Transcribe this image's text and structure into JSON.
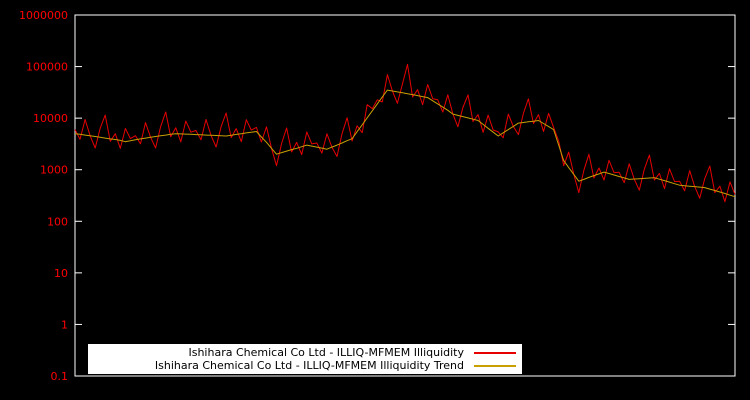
{
  "chart_data": {
    "type": "line",
    "title": "",
    "xlabel": "",
    "ylabel": "",
    "y_scale": "log",
    "ylim": [
      0.1,
      1000000
    ],
    "y_ticks": [
      "1000000",
      "100000",
      "10000",
      "1000",
      "100",
      "10",
      "1",
      "0.1"
    ],
    "x_tick_labels_visible": false,
    "grid": false,
    "background_color": "#000000",
    "axis_color": "#ffffff",
    "tick_label_color": "#ff0000",
    "legend": {
      "background": "#ffffff",
      "text_color": "#000000",
      "position": "bottom-center-inside"
    },
    "series": [
      {
        "name": "Ishihara Chemical Co Ltd - ILLIQ-MFMEM Illiquidity",
        "color": "#e60000",
        "values": [
          6000,
          3880,
          9400,
          4550,
          2640,
          6380,
          11480,
          3560,
          5000,
          2590,
          6300,
          4020,
          4560,
          3160,
          8200,
          4250,
          2640,
          6830,
          13160,
          4370,
          6500,
          3470,
          8820,
          5340,
          5760,
          3800,
          9400,
          4650,
          2760,
          6830,
          12600,
          4200,
          6280,
          3500,
          9310,
          5860,
          6600,
          3440,
          6800,
          2600,
          1200,
          3230,
          6440,
          2210,
          3380,
          1960,
          5400,
          3160,
          3300,
          2100,
          5000,
          2750,
          1800,
          4950,
          10220,
          3600,
          7100,
          5210,
          18270,
          15240,
          22680,
          20640,
          70000,
          33600,
          19380,
          46500,
          110000,
          25740,
          35620,
          18340,
          45000,
          23870,
          22680,
          13120,
          28400,
          12000,
          6780,
          16050,
          28280,
          8600,
          11700,
          5300,
          11450,
          5890,
          5400,
          4160,
          12000,
          6930,
          4800,
          12360,
          23770,
          7870,
          11700,
          5500,
          12370,
          6600,
          3600,
          1200,
          2200,
          810,
          360,
          980,
          1990,
          690,
          1080,
          630,
          1520,
          870,
          890,
          560,
          1300,
          660,
          400,
          1020,
          1930,
          630,
          850,
          430,
          1040,
          590,
          600,
          390,
          960,
          470,
          280,
          680,
          1180,
          360,
          480,
          240,
          580,
          330
        ]
      },
      {
        "name": "Ishihara Chemical Co Ltd - ILLIQ-MFMEM Illiquidity Trend",
        "color": "#c8a000",
        "values": [
          5000,
          4850,
          4700,
          4550,
          4400,
          4250,
          4100,
          3950,
          3850,
          3700,
          3500,
          3650,
          3800,
          3950,
          4100,
          4250,
          4400,
          4550,
          4700,
          4850,
          5000,
          4950,
          4900,
          4850,
          4800,
          4750,
          4700,
          4650,
          4600,
          4550,
          4500,
          4670,
          4830,
          5000,
          5170,
          5330,
          5500,
          4300,
          3400,
          2600,
          2000,
          2150,
          2300,
          2450,
          2600,
          2800,
          3000,
          2870,
          2750,
          2620,
          2500,
          2750,
          3000,
          3300,
          3650,
          4000,
          5460,
          7440,
          10150,
          13850,
          18900,
          25800,
          35000,
          33600,
          32300,
          31000,
          29800,
          28600,
          27400,
          26200,
          25000,
          21700,
          18900,
          16400,
          14200,
          12000,
          11300,
          10700,
          10100,
          9550,
          9000,
          7570,
          6360,
          5350,
          4500,
          5200,
          6000,
          6930,
          8000,
          8240,
          8490,
          8740,
          9000,
          7860,
          6870,
          6000,
          3000,
          1500,
          1100,
          810,
          600,
          650,
          710,
          770,
          830,
          900,
          845,
          790,
          740,
          695,
          650,
          660,
          670,
          680,
          690,
          700,
          655,
          615,
          575,
          535,
          500,
          490,
          480,
          470,
          460,
          450,
          420,
          395,
          370,
          345,
          320,
          300
        ]
      }
    ]
  }
}
